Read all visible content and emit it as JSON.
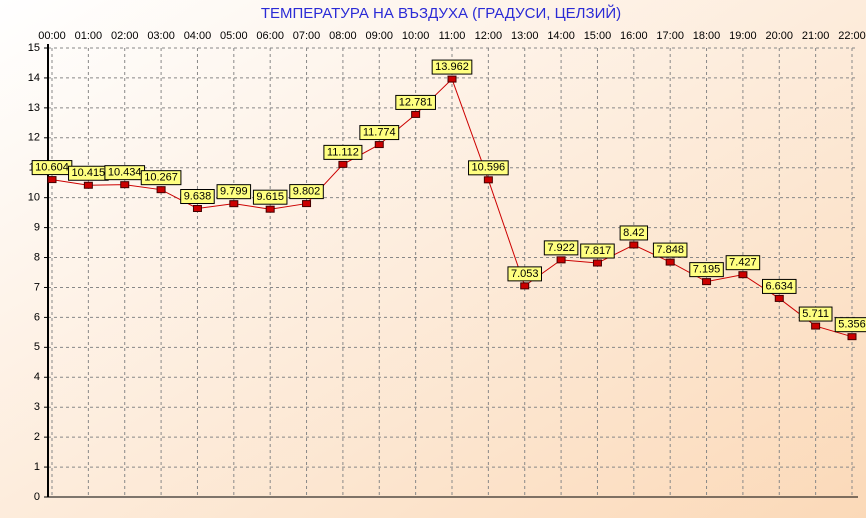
{
  "chart_data": {
    "type": "line",
    "title": "ТЕМПЕРАТУРА НА ВЪЗДУХА  (ГРАДУСИ, ЦЕЛЗИЙ)",
    "categories": [
      "00:00",
      "01:00",
      "02:00",
      "03:00",
      "04:00",
      "05:00",
      "06:00",
      "07:00",
      "08:00",
      "09:00",
      "10:00",
      "11:00",
      "12:00",
      "13:00",
      "14:00",
      "15:00",
      "16:00",
      "17:00",
      "18:00",
      "19:00",
      "20:00",
      "21:00",
      "22:00"
    ],
    "values": [
      10.604,
      10.415,
      10.434,
      10.267,
      9.638,
      9.799,
      9.615,
      9.802,
      11.112,
      11.774,
      12.781,
      13.962,
      10.596,
      7.053,
      7.922,
      7.817,
      8.42,
      7.848,
      7.195,
      7.427,
      6.634,
      5.711,
      5.356
    ],
    "color": "#cc0000",
    "ylim": [
      0,
      15
    ],
    "yticks": [
      0,
      1,
      2,
      3,
      4,
      5,
      6,
      7,
      8,
      9,
      10,
      11,
      12,
      13,
      14,
      15
    ],
    "grid": true
  }
}
